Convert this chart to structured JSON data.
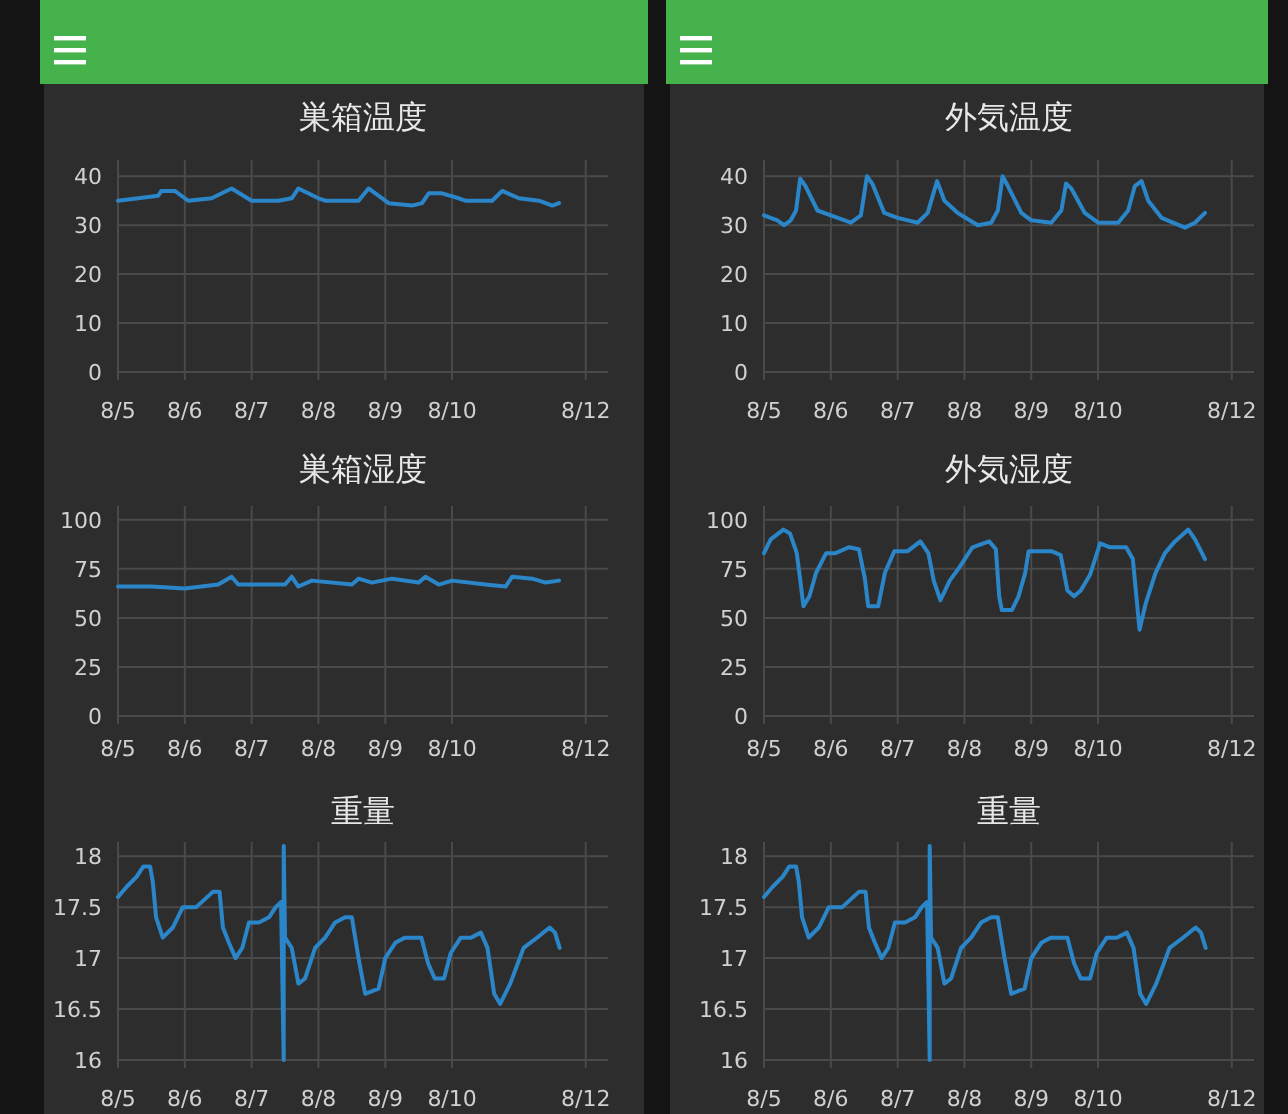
{
  "chart_data": [
    {
      "type": "line",
      "title": "巣箱温度",
      "color": "#2b86c9",
      "grid": true,
      "xlim": [
        "--08-05T00:00",
        "--08-12T08:00"
      ],
      "ylim": [
        0,
        42.5
      ],
      "yticks": [
        0,
        10,
        20,
        30,
        40
      ],
      "xticks": [
        {
          "value": "--08-05",
          "label": "8/5"
        },
        {
          "value": "--08-06",
          "label": "8/6"
        },
        {
          "value": "--08-07",
          "label": "8/7"
        },
        {
          "value": "--08-08",
          "label": "8/8"
        },
        {
          "value": "--08-09",
          "label": "8/9"
        },
        {
          "value": "--08-10",
          "label": "8/10"
        },
        {
          "value": "--08-12",
          "label": "8/12"
        }
      ],
      "x": [
        "--08-05T00:00",
        "--08-05T07:12",
        "--08-05T14:24",
        "--08-05T15:36",
        "--08-05T20:24",
        "--08-06T00:00",
        "--08-06T01:12",
        "--08-06T09:36",
        "--08-06T16:48",
        "--08-07T00:00",
        "--08-07T09:36",
        "--08-07T14:24",
        "--08-07T16:48",
        "--08-08T00:00",
        "--08-08T02:24",
        "--08-08T14:24",
        "--08-08T18:00",
        "--08-09T01:12",
        "--08-09T09:36",
        "--08-09T13:12",
        "--08-09T15:36",
        "--08-09T20:24",
        "--08-10T02:24",
        "--08-10T04:48",
        "--08-10T14:24",
        "--08-10T18:00",
        "--08-11T00:00",
        "--08-11T07:12",
        "--08-11T12:00",
        "--08-11T14:24"
      ],
      "values": [
        35,
        35.5,
        36,
        37,
        37,
        35.5,
        35,
        35.5,
        37.5,
        35,
        35,
        35.5,
        37.5,
        35.5,
        35,
        35,
        37.5,
        34.5,
        34,
        34.5,
        36.5,
        36.5,
        35.5,
        35,
        35,
        37,
        35.5,
        35,
        34,
        34.5
      ]
    },
    {
      "type": "line",
      "title": "外気温度",
      "color": "#2b86c9",
      "grid": true,
      "xlim": [
        "--08-05T00:00",
        "--08-12T08:00"
      ],
      "ylim": [
        0,
        42.5
      ],
      "yticks": [
        0,
        10,
        20,
        30,
        40
      ],
      "xticks": [
        {
          "value": "--08-05",
          "label": "8/5"
        },
        {
          "value": "--08-06",
          "label": "8/6"
        },
        {
          "value": "--08-07",
          "label": "8/7"
        },
        {
          "value": "--08-08",
          "label": "8/8"
        },
        {
          "value": "--08-09",
          "label": "8/9"
        },
        {
          "value": "--08-10",
          "label": "8/10"
        },
        {
          "value": "--08-12",
          "label": "8/12"
        }
      ],
      "x": [
        "--08-05T00:00",
        "--08-05T04:48",
        "--08-05T07:12",
        "--08-05T09:36",
        "--08-05T11:31",
        "--08-05T12:58",
        "--08-05T14:53",
        "--08-05T19:12",
        "--08-06T00:00",
        "--08-06T07:12",
        "--08-06T10:48",
        "--08-06T12:58",
        "--08-06T14:53",
        "--08-06T19:12",
        "--08-07T00:00",
        "--08-07T07:12",
        "--08-07T10:48",
        "--08-07T14:10",
        "--08-07T16:48",
        "--08-07T21:36",
        "--08-08T04:48",
        "--08-08T09:36",
        "--08-08T12:00",
        "--08-08T13:41",
        "--08-08T15:36",
        "--08-08T20:24",
        "--08-09T00:00",
        "--08-09T07:12",
        "--08-09T10:48",
        "--08-09T12:29",
        "--08-09T14:24",
        "--08-09T19:12",
        "--08-10T00:00",
        "--08-10T07:12",
        "--08-10T10:48",
        "--08-10T13:12",
        "--08-10T15:36",
        "--08-10T18:00",
        "--08-10T22:48",
        "--08-11T07:12",
        "--08-11T10:48",
        "--08-11T14:24"
      ],
      "values": [
        32,
        31,
        30,
        31,
        33,
        39.5,
        38,
        33,
        32,
        30.5,
        32,
        40,
        38.5,
        32.5,
        31.5,
        30.5,
        32.5,
        39,
        35,
        32.5,
        30,
        30.5,
        33,
        40,
        38,
        32.5,
        31,
        30.5,
        33,
        38.5,
        37.5,
        32.5,
        30.5,
        30.5,
        33,
        38,
        39,
        35,
        31.5,
        29.5,
        30.5,
        32.5
      ]
    },
    {
      "type": "line",
      "title": "巣箱湿度",
      "color": "#2b86c9",
      "grid": true,
      "xlim": [
        "--08-05T00:00",
        "--08-12T08:00"
      ],
      "ylim": [
        0,
        105
      ],
      "yticks": [
        0,
        25,
        50,
        75,
        100
      ],
      "xticks": [
        {
          "value": "--08-05",
          "label": "8/5"
        },
        {
          "value": "--08-06",
          "label": "8/6"
        },
        {
          "value": "--08-07",
          "label": "8/7"
        },
        {
          "value": "--08-08",
          "label": "8/8"
        },
        {
          "value": "--08-09",
          "label": "8/9"
        },
        {
          "value": "--08-10",
          "label": "8/10"
        },
        {
          "value": "--08-12",
          "label": "8/12"
        }
      ],
      "x": [
        "--08-05T00:00",
        "--08-05T12:00",
        "--08-06T00:00",
        "--08-06T12:00",
        "--08-06T16:48",
        "--08-06T19:12",
        "--08-07T12:00",
        "--08-07T14:24",
        "--08-07T16:48",
        "--08-07T21:36",
        "--08-08T12:00",
        "--08-08T14:24",
        "--08-08T19:12",
        "--08-09T02:24",
        "--08-09T12:00",
        "--08-09T14:24",
        "--08-09T19:12",
        "--08-10T00:00",
        "--08-10T12:00",
        "--08-10T19:12",
        "--08-10T21:36",
        "--08-11T04:48",
        "--08-11T09:36",
        "--08-11T14:24"
      ],
      "values": [
        66,
        66,
        65,
        67,
        71,
        67,
        67,
        71,
        66,
        69,
        67,
        70,
        68,
        70,
        68,
        71,
        67,
        69,
        67,
        66,
        71,
        70,
        68,
        69
      ]
    },
    {
      "type": "line",
      "title": "外気湿度",
      "color": "#2b86c9",
      "grid": true,
      "xlim": [
        "--08-05T00:00",
        "--08-12T08:00"
      ],
      "ylim": [
        0,
        105
      ],
      "yticks": [
        0,
        25,
        50,
        75,
        100
      ],
      "xticks": [
        {
          "value": "--08-05",
          "label": "8/5"
        },
        {
          "value": "--08-06",
          "label": "8/6"
        },
        {
          "value": "--08-07",
          "label": "8/7"
        },
        {
          "value": "--08-08",
          "label": "8/8"
        },
        {
          "value": "--08-09",
          "label": "8/9"
        },
        {
          "value": "--08-10",
          "label": "8/10"
        },
        {
          "value": "--08-12",
          "label": "8/12"
        }
      ],
      "x": [
        "--08-05T00:00",
        "--08-05T02:24",
        "--08-05T06:58",
        "--08-05T09:22",
        "--08-05T11:46",
        "--08-05T12:58",
        "--08-05T14:10",
        "--08-05T16:19",
        "--08-05T18:43",
        "--08-05T22:19",
        "--08-06T01:41",
        "--08-06T06:29",
        "--08-06T10:05",
        "--08-06T12:14",
        "--08-06T13:26",
        "--08-06T17:02",
        "--08-06T19:26",
        "--08-06T22:48",
        "--08-07T03:36",
        "--08-07T08:10",
        "--08-07T11:02",
        "--08-07T12:58",
        "--08-07T15:22",
        "--08-07T18:43",
        "--08-07T22:19",
        "--08-08T02:53",
        "--08-08T08:53",
        "--08-08T11:17",
        "--08-08T12:29",
        "--08-08T13:26",
        "--08-08T17:02",
        "--08-08T19:26",
        "--08-08T21:50",
        "--08-08T23:02",
        "--08-09T07:12",
        "--08-09T10:34",
        "--08-09T12:58",
        "--08-09T15:22",
        "--08-09T17:46",
        "--08-09T21:07",
        "--08-10T00:43",
        "--08-10T04:19",
        "--08-10T10:05",
        "--08-10T12:29",
        "--08-10T14:53",
        "--08-10T17:02",
        "--08-10T20:38",
        "--08-11T00:00",
        "--08-11T03:36",
        "--08-11T08:24",
        "--08-11T10:48",
        "--08-11T14:24"
      ],
      "values": [
        83,
        90,
        95,
        93,
        83,
        70,
        56,
        61,
        73,
        83,
        83,
        86,
        85,
        70,
        56,
        56,
        73,
        84,
        84,
        89,
        83,
        69,
        59,
        69,
        76,
        86,
        89,
        85,
        61,
        54,
        54,
        61,
        73,
        84,
        84,
        82,
        64,
        61,
        64,
        72,
        88,
        86,
        86,
        80,
        44,
        57,
        73,
        83,
        89,
        95,
        90,
        80
      ]
    },
    {
      "type": "line",
      "title": "重量",
      "color": "#2b86c9",
      "grid": true,
      "xlim": [
        "--08-05T00:00",
        "--08-12T08:00"
      ],
      "ylim": [
        16,
        18.1
      ],
      "yticks": [
        16,
        16.5,
        17,
        17.5,
        18
      ],
      "xticks": [
        {
          "value": "--08-05",
          "label": "8/5"
        },
        {
          "value": "--08-06",
          "label": "8/6"
        },
        {
          "value": "--08-07",
          "label": "8/7"
        },
        {
          "value": "--08-08",
          "label": "8/8"
        },
        {
          "value": "--08-09",
          "label": "8/9"
        },
        {
          "value": "--08-10",
          "label": "8/10"
        },
        {
          "value": "--08-12",
          "label": "8/12"
        }
      ],
      "x": [
        "--08-05T00:00",
        "--08-05T03:07",
        "--08-05T06:43",
        "--08-05T09:07",
        "--08-05T11:31",
        "--08-05T12:29",
        "--08-05T13:41",
        "--08-05T16:05",
        "--08-05T19:41",
        "--08-05T23:17",
        "--08-06T01:41",
        "--08-06T04:05",
        "--08-06T10:05",
        "--08-06T12:29",
        "--08-06T13:41",
        "--08-06T15:50",
        "--08-06T18:14",
        "--08-06T20:38",
        "--08-06T23:02",
        "--08-07T02:38",
        "--08-07T06:14",
        "--08-07T08:38",
        "--08-07T10:34",
        "--08-07T11:31",
        "--08-07T11:31",
        "--08-07T12:00",
        "--08-07T14:24",
        "--08-07T16:48",
        "--08-07T19:12",
        "--08-07T22:48",
        "--08-08T02:24",
        "--08-08T06:00",
        "--08-08T09:36",
        "--08-08T12:00",
        "--08-08T14:24",
        "--08-08T16:48",
        "--08-08T21:36",
        "--08-09T00:00",
        "--08-09T03:36",
        "--08-09T06:58",
        "--08-09T09:22",
        "--08-09T12:58",
        "--08-09T15:22",
        "--08-09T17:46",
        "--08-09T21:07",
        "--08-09T23:31",
        "--08-10T03:07",
        "--08-10T06:43",
        "--08-10T10:19",
        "--08-10T12:43",
        "--08-10T15:07",
        "--08-10T17:17",
        "--08-10T20:53",
        "--08-11T01:41",
        "--08-11T06:29",
        "--08-11T11:02",
        "--08-11T12:58",
        "--08-11T14:38"
      ],
      "values": [
        17.6,
        17.7,
        17.8,
        17.9,
        17.9,
        17.75,
        17.4,
        17.2,
        17.3,
        17.5,
        17.5,
        17.5,
        17.65,
        17.65,
        17.3,
        17.15,
        17.0,
        17.1,
        17.35,
        17.35,
        17.4,
        17.5,
        17.55,
        16,
        18.1,
        17.2,
        17.1,
        16.75,
        16.8,
        17.1,
        17.2,
        17.35,
        17.4,
        17.4,
        17.0,
        16.65,
        16.7,
        17.0,
        17.15,
        17.2,
        17.2,
        17.2,
        16.95,
        16.8,
        16.8,
        17.05,
        17.2,
        17.2,
        17.25,
        17.1,
        16.65,
        16.55,
        16.75,
        17.1,
        17.2,
        17.3,
        17.25,
        17.1
      ]
    },
    {
      "type": "line",
      "title": "重量",
      "color": "#2b86c9",
      "grid": true,
      "xlim": [
        "--08-05T00:00",
        "--08-12T08:00"
      ],
      "ylim": [
        16,
        18.1
      ],
      "yticks": [
        16,
        16.5,
        17,
        17.5,
        18
      ],
      "xticks": [
        {
          "value": "--08-05",
          "label": "8/5"
        },
        {
          "value": "--08-06",
          "label": "8/6"
        },
        {
          "value": "--08-07",
          "label": "8/7"
        },
        {
          "value": "--08-08",
          "label": "8/8"
        },
        {
          "value": "--08-09",
          "label": "8/9"
        },
        {
          "value": "--08-10",
          "label": "8/10"
        },
        {
          "value": "--08-12",
          "label": "8/12"
        }
      ],
      "x": [
        "--08-05T00:00",
        "--08-05T03:07",
        "--08-05T06:43",
        "--08-05T09:07",
        "--08-05T11:31",
        "--08-05T12:29",
        "--08-05T13:41",
        "--08-05T16:05",
        "--08-05T19:41",
        "--08-05T23:17",
        "--08-06T01:41",
        "--08-06T04:05",
        "--08-06T10:05",
        "--08-06T12:29",
        "--08-06T13:41",
        "--08-06T15:50",
        "--08-06T18:14",
        "--08-06T20:38",
        "--08-06T23:02",
        "--08-07T02:38",
        "--08-07T06:14",
        "--08-07T08:38",
        "--08-07T10:34",
        "--08-07T11:31",
        "--08-07T11:31",
        "--08-07T12:00",
        "--08-07T14:24",
        "--08-07T16:48",
        "--08-07T19:12",
        "--08-07T22:48",
        "--08-08T02:24",
        "--08-08T06:00",
        "--08-08T09:36",
        "--08-08T12:00",
        "--08-08T14:24",
        "--08-08T16:48",
        "--08-08T21:36",
        "--08-09T00:00",
        "--08-09T03:36",
        "--08-09T06:58",
        "--08-09T09:22",
        "--08-09T12:58",
        "--08-09T15:22",
        "--08-09T17:46",
        "--08-09T21:07",
        "--08-09T23:31",
        "--08-10T03:07",
        "--08-10T06:43",
        "--08-10T10:19",
        "--08-10T12:43",
        "--08-10T15:07",
        "--08-10T17:17",
        "--08-10T20:53",
        "--08-11T01:41",
        "--08-11T06:29",
        "--08-11T11:02",
        "--08-11T12:58",
        "--08-11T14:38"
      ],
      "values": [
        17.6,
        17.7,
        17.8,
        17.9,
        17.9,
        17.75,
        17.4,
        17.2,
        17.3,
        17.5,
        17.5,
        17.5,
        17.65,
        17.65,
        17.3,
        17.15,
        17.0,
        17.1,
        17.35,
        17.35,
        17.4,
        17.5,
        17.55,
        16,
        18.1,
        17.2,
        17.1,
        16.75,
        16.8,
        17.1,
        17.2,
        17.35,
        17.4,
        17.4,
        17.0,
        16.65,
        16.7,
        17.0,
        17.15,
        17.2,
        17.2,
        17.2,
        16.95,
        16.8,
        16.8,
        17.05,
        17.2,
        17.2,
        17.25,
        17.1,
        16.65,
        16.55,
        16.75,
        17.1,
        17.2,
        17.3,
        17.25,
        17.1
      ]
    }
  ]
}
